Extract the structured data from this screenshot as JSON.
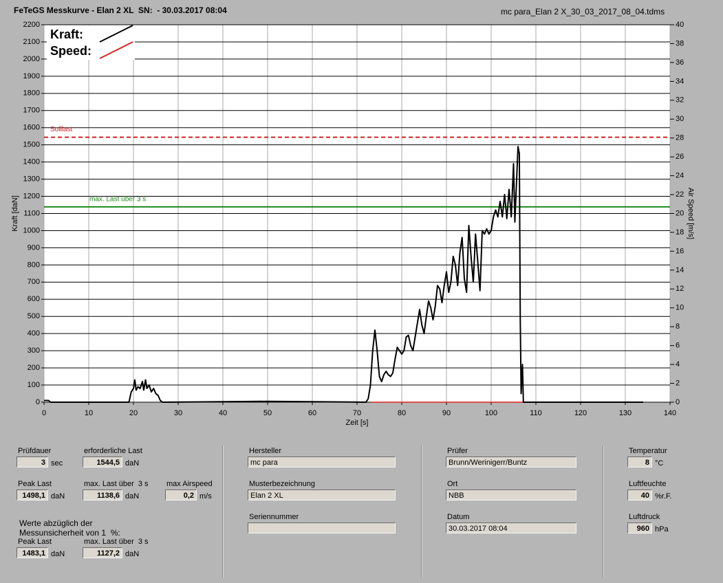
{
  "header": {
    "title": "FeTeGS Messkurve - Elan 2 XL  SN:  - 30.03.2017 08:04",
    "file": "mc para_Elan 2 X_30_03_2017_08_04.tdms"
  },
  "chart_data": {
    "type": "line",
    "xlabel": "Zeit [s]",
    "ylabel": "Kraft [daN]",
    "y2label": "Air Speed [m/s]",
    "xlim": [
      0,
      140
    ],
    "xticks": [
      0,
      10,
      20,
      30,
      40,
      50,
      60,
      70,
      80,
      90,
      100,
      110,
      120,
      130,
      140
    ],
    "ylim": [
      0,
      2200
    ],
    "yticks": [
      0,
      100,
      200,
      300,
      400,
      500,
      600,
      700,
      800,
      900,
      1000,
      1100,
      1200,
      1300,
      1400,
      1500,
      1600,
      1700,
      1800,
      1900,
      2000,
      2100,
      2200
    ],
    "y2lim": [
      0,
      40
    ],
    "y2ticks": [
      0,
      2,
      4,
      6,
      8,
      10,
      12,
      14,
      16,
      18,
      20,
      22,
      24,
      26,
      28,
      30,
      32,
      34,
      36,
      38,
      40
    ],
    "grid": true,
    "legend": "upper left",
    "series": [
      {
        "name": "Kraft:",
        "color": "#000000",
        "x": [
          0,
          1,
          1.5,
          19,
          19.5,
          20,
          20.3,
          20.6,
          21,
          21.5,
          22,
          22.3,
          22.7,
          23,
          23.5,
          24,
          24.5,
          25,
          25.5,
          26,
          26.5,
          50,
          72,
          72.5,
          73,
          73.5,
          74,
          74.5,
          75,
          75.5,
          76,
          76.5,
          77,
          77.5,
          78,
          78.5,
          79,
          79.5,
          80,
          80.5,
          81,
          81.5,
          82,
          82.5,
          83,
          83.5,
          84,
          84.5,
          85,
          85.5,
          86,
          86.5,
          87,
          87.5,
          88,
          88.5,
          89,
          89.5,
          90,
          90.5,
          91,
          91.5,
          92,
          92.5,
          93,
          93.5,
          94,
          94.5,
          95,
          95.5,
          96,
          96.5,
          97,
          97.5,
          98,
          98.5,
          99,
          99.5,
          100,
          100.5,
          101,
          101.5,
          102,
          102.5,
          103,
          103.5,
          104,
          104.5,
          105,
          105.3,
          105.7,
          106,
          106.3,
          106.5,
          106.7,
          107,
          107.2,
          134
        ],
        "values": [
          10,
          10,
          0,
          0,
          60,
          80,
          130,
          70,
          90,
          80,
          120,
          70,
          130,
          80,
          100,
          60,
          80,
          50,
          40,
          10,
          0,
          5,
          0,
          20,
          100,
          300,
          420,
          300,
          150,
          120,
          160,
          180,
          160,
          150,
          170,
          250,
          320,
          300,
          280,
          300,
          380,
          390,
          330,
          300,
          380,
          460,
          540,
          450,
          400,
          500,
          590,
          550,
          480,
          560,
          680,
          660,
          580,
          680,
          760,
          640,
          700,
          850,
          800,
          680,
          870,
          960,
          720,
          640,
          1030,
          850,
          700,
          980,
          820,
          650,
          1000,
          980,
          1010,
          980,
          1000,
          1080,
          1120,
          1080,
          1170,
          1080,
          1210,
          1070,
          1240,
          1080,
          1390,
          1050,
          1300,
          1490,
          1450,
          500,
          50,
          220,
          0,
          0
        ]
      },
      {
        "name": "Speed:",
        "color": "#e02020",
        "axis": "y2",
        "x": [
          73,
          107
        ],
        "values": [
          0,
          0
        ]
      }
    ],
    "hlines": [
      {
        "label": "Solllast",
        "value": 1544.5,
        "color": "#d42020",
        "style": "dashed"
      },
      {
        "label": "max. Last über  3 s",
        "value": 1138.6,
        "color": "#1a8a1a",
        "style": "solid"
      }
    ]
  },
  "panel": {
    "fields": [
      {
        "label": "Prüfdauer",
        "value": "3",
        "unit": "sec"
      },
      {
        "label": "erforderliche Last",
        "value": "1544,5",
        "unit": "daN"
      },
      {
        "label": "Peak Last",
        "value": "1498,1",
        "unit": "daN"
      },
      {
        "label": "max. Last über  3 s",
        "value": "1138,6",
        "unit": "daN"
      },
      {
        "label": "max Airspeed",
        "value": "0,2",
        "unit": "m/s"
      },
      {
        "label": "Peak Last",
        "value": "1483,1",
        "unit": "daN"
      },
      {
        "label": "max. Last über  3 s",
        "value": "1127,2",
        "unit": "daN"
      },
      {
        "label": "Hersteller",
        "value": "mc para"
      },
      {
        "label": "Musterbezeichnung",
        "value": "Elan 2 XL"
      },
      {
        "label": "Seriennummer"
      },
      {
        "label": "Prüfer",
        "value": "Brunn/Werinigerr/Buntz"
      },
      {
        "label": "Ort",
        "value": "NBB"
      },
      {
        "label": "Datum",
        "value": "30.03.2017 08:04"
      },
      {
        "label": "Temperatur",
        "value": "8",
        "unit": "°C"
      },
      {
        "label": "Luftfeuchte",
        "value": "40",
        "unit": "%r.F."
      },
      {
        "label": "Luftdruck",
        "value": "960",
        "unit": "hPa"
      }
    ],
    "note": "Werte abzüglich der\nMessunsicherheit von 1  %:"
  }
}
